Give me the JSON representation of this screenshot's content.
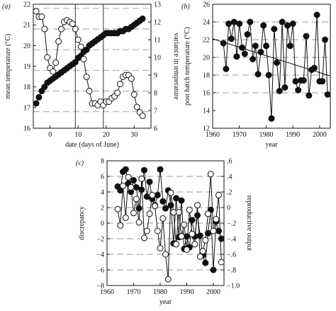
{
  "chart_data": [
    {
      "panel_label": "(a)",
      "type": "scatter",
      "xlabel": "date (days of June)",
      "ylabel_left": "mean temperature (°C)",
      "ylabel_right": "variance in temperature",
      "xlim": [
        -6,
        36
      ],
      "ylim_left": [
        16,
        22
      ],
      "ylim_right": [
        6,
        13
      ],
      "xticks": [
        0,
        10,
        20,
        30
      ],
      "yticks_left": [
        16,
        17,
        18,
        19,
        20,
        21,
        22
      ],
      "yticks_right": [
        6,
        7,
        8,
        9,
        10,
        11,
        12,
        13
      ],
      "dashed_hlines_left": [
        16.8,
        17.8,
        18.8,
        19.8,
        20.8,
        21.8
      ],
      "vlines": [
        9,
        19
      ],
      "series": [
        {
          "marker": "filled",
          "axis": "left",
          "x": [
            -5,
            -4,
            -3,
            -2,
            -1,
            0,
            1,
            2,
            3,
            4,
            5,
            6,
            7,
            8,
            9,
            10,
            11,
            12,
            13,
            14,
            15,
            16,
            17,
            18,
            19,
            20,
            21,
            22,
            23,
            24,
            25,
            26,
            27,
            28,
            29,
            30,
            31,
            32,
            33
          ],
          "y": [
            17.2,
            17.5,
            17.8,
            18.0,
            18.2,
            18.3,
            18.4,
            18.5,
            18.6,
            18.7,
            18.8,
            18.9,
            19.0,
            19.1,
            19.2,
            19.4,
            19.5,
            19.7,
            19.8,
            20.0,
            20.1,
            20.2,
            20.3,
            20.4,
            20.5,
            20.6,
            20.6,
            20.6,
            20.6,
            20.6,
            20.7,
            20.7,
            20.8,
            20.8,
            20.9,
            21.0,
            21.1,
            21.2,
            21.3
          ]
        },
        {
          "marker": "open",
          "axis": "right",
          "x": [
            -5,
            -4,
            -3,
            -2,
            -1,
            0,
            1,
            2,
            3,
            4,
            5,
            6,
            7,
            8,
            9,
            10,
            11,
            12,
            13,
            14,
            15,
            16,
            17,
            18,
            19,
            20,
            21,
            22,
            23,
            24,
            25,
            26,
            27,
            28,
            29,
            30,
            31,
            32,
            33
          ],
          "y": [
            12.6,
            12.3,
            12.3,
            11.6,
            10.0,
            9.4,
            9.2,
            9.7,
            10.9,
            11.6,
            12.0,
            12.1,
            12.0,
            11.9,
            11.6,
            11.0,
            10.6,
            9.9,
            8.9,
            8.1,
            7.4,
            7.4,
            7.3,
            7.5,
            7.3,
            7.5,
            7.5,
            7.7,
            7.8,
            8.0,
            8.5,
            8.9,
            9.0,
            9.0,
            8.8,
            7.9,
            7.2,
            6.9,
            6.7
          ]
        }
      ]
    },
    {
      "panel_label": "(b)",
      "type": "line",
      "xlabel": "year",
      "ylabel": "post hatch temperature (°C)",
      "xlim": [
        1960,
        2004
      ],
      "ylim": [
        12,
        26
      ],
      "xticks": [
        1960,
        1970,
        1980,
        1990,
        2000
      ],
      "yticks": [
        12,
        14,
        16,
        18,
        20,
        22,
        24,
        26
      ],
      "dashed_hlines": [
        16,
        18,
        20,
        22,
        24
      ],
      "trend_line": {
        "x": [
          1960,
          2004
        ],
        "y": [
          22.1,
          17.9
        ]
      },
      "series": [
        {
          "marker": "filled",
          "x": [
            1964,
            1965,
            1966,
            1967,
            1968,
            1969,
            1970,
            1971,
            1972,
            1973,
            1974,
            1975,
            1976,
            1977,
            1978,
            1979,
            1980,
            1981,
            1982,
            1983,
            1984,
            1985,
            1986,
            1987,
            1988,
            1989,
            1990,
            1991,
            1992,
            1993,
            1994,
            1995,
            1996,
            1997,
            1998,
            1999,
            2000,
            2001,
            2002,
            2003
          ],
          "y": [
            21.6,
            18.7,
            23.8,
            22.1,
            24.0,
            20.1,
            23.8,
            21.1,
            20.4,
            22.6,
            24.0,
            19.8,
            21.3,
            18.1,
            20.6,
            23.6,
            21.3,
            18.0,
            13.1,
            23.2,
            19.4,
            16.2,
            24.0,
            16.6,
            23.6,
            21.3,
            23.8,
            17.3,
            16.3,
            17.4,
            17.4,
            22.4,
            15.7,
            18.6,
            18.8,
            24.8,
            17.3,
            17.3,
            22.0,
            15.8
          ]
        }
      ]
    },
    {
      "panel_label": "(c)",
      "type": "line",
      "xlabel": "year",
      "ylabel_left": "discrepancy",
      "ylabel_right": "reproductive output",
      "xlim": [
        1960,
        2004
      ],
      "ylim_left": [
        -8,
        8
      ],
      "ylim_right": [
        -1.0,
        0.6
      ],
      "xticks": [
        1960,
        1970,
        1980,
        1990,
        2000
      ],
      "yticks_left": [
        -8,
        -6,
        -4,
        -2,
        0,
        2,
        4,
        6,
        8
      ],
      "yticks_right": [
        -1.0,
        -0.8,
        -0.6,
        -0.4,
        -0.2,
        0,
        0.2,
        0.4,
        0.6
      ],
      "dashed_hlines_left": [
        -6,
        -4,
        -2,
        0,
        2,
        4,
        6
      ],
      "series": [
        {
          "marker": "filled",
          "axis": "left",
          "x": [
            1964,
            1965,
            1966,
            1967,
            1968,
            1969,
            1970,
            1971,
            1972,
            1973,
            1974,
            1975,
            1976,
            1977,
            1978,
            1979,
            1980,
            1981,
            1982,
            1983,
            1984,
            1985,
            1986,
            1987,
            1988,
            1989,
            1990,
            1991,
            1992,
            1993,
            1994,
            1995,
            1996,
            1997,
            1998,
            1999,
            2000,
            2001,
            2002,
            2003
          ],
          "y": [
            4.7,
            4.2,
            6.6,
            6.9,
            5.1,
            4.0,
            5.5,
            4.6,
            1.9,
            4.3,
            6.8,
            3.4,
            5.3,
            3.1,
            2.3,
            3.6,
            6.9,
            2.8,
            1.9,
            4.2,
            2.3,
            -2.6,
            3.2,
            -1.8,
            2.9,
            -3.3,
            -1.7,
            -3.1,
            0.4,
            -1.7,
            1.0,
            -1.6,
            -4.1,
            -5.1,
            -1.3,
            1.7,
            -6.0,
            0.2,
            -1.0,
            -2.0
          ]
        },
        {
          "marker": "open",
          "axis": "right",
          "x": [
            1964,
            1965,
            1966,
            1967,
            1968,
            1969,
            1970,
            1971,
            1972,
            1973,
            1974,
            1975,
            1976,
            1977,
            1978,
            1979,
            1980,
            1981,
            1982,
            1983,
            1984,
            1985,
            1986,
            1987,
            1988,
            1989,
            1990,
            1991,
            1992,
            1993,
            1994,
            1995,
            1996,
            1997,
            1998,
            1999,
            2000,
            2001,
            2002,
            2003
          ],
          "y": [
            -0.02,
            -0.23,
            0.28,
            -0.13,
            0.39,
            0.26,
            -0.07,
            0.11,
            -0.19,
            0.37,
            -0.39,
            -0.3,
            -0.08,
            0.16,
            0.02,
            -0.3,
            -0.52,
            -0.14,
            -0.6,
            -0.92,
            0.19,
            -0.06,
            -0.47,
            -0.06,
            -0.37,
            -0.22,
            -0.54,
            -0.03,
            -0.34,
            -0.47,
            0.03,
            -0.63,
            -0.56,
            -0.42,
            -0.08,
            0.43,
            -0.3,
            -0.15,
            0.16,
            -0.7
          ]
        }
      ]
    }
  ]
}
